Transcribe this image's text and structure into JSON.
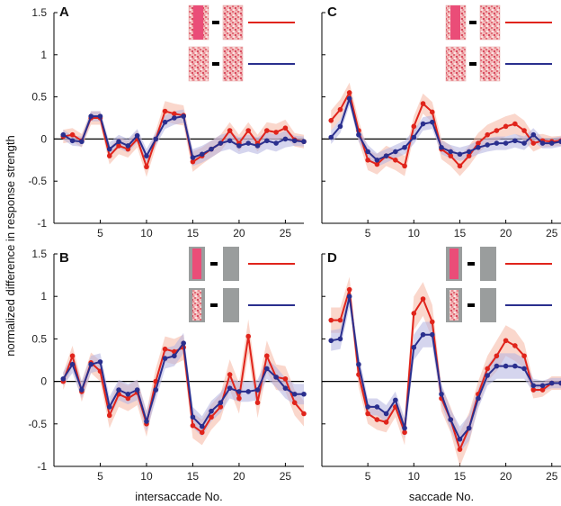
{
  "y_axis_label": "normalized difference in response strength",
  "colors": {
    "red": "#e0241b",
    "blue": "#2a2f8e",
    "red_band": "#f6b7a2",
    "blue_band": "#b3b3e0"
  },
  "chart_data": [
    {
      "panel": "A",
      "type": "line",
      "xlabel": "",
      "ylim": [
        -1,
        1.5
      ],
      "xlim": [
        0,
        27
      ],
      "xticks": [
        5,
        10,
        15,
        20,
        25
      ],
      "yticks": [
        -1,
        -0.5,
        0,
        0.5,
        1,
        1.5
      ],
      "ytick_labels": [
        "-1",
        "-0.5",
        "0",
        "0.5",
        "1",
        "1.5"
      ],
      "legend": [
        "pattern stimulus – red",
        "pattern stimulus – blue"
      ],
      "series": [
        {
          "name": "red",
          "x": [
            1,
            2,
            3,
            4,
            5,
            6,
            7,
            8,
            9,
            10,
            11,
            12,
            13,
            14,
            15,
            16,
            17,
            18,
            19,
            20,
            21,
            22,
            23,
            24,
            25,
            26,
            27
          ],
          "values": [
            0.03,
            0.05,
            -0.02,
            0.25,
            0.25,
            -0.2,
            -0.08,
            -0.12,
            0.0,
            -0.33,
            0.0,
            0.33,
            0.3,
            0.28,
            -0.27,
            -0.2,
            -0.12,
            -0.05,
            0.1,
            -0.05,
            0.1,
            -0.05,
            0.1,
            0.08,
            0.13,
            -0.01,
            -0.03
          ],
          "band": [
            0.08,
            0.08,
            0.08,
            0.08,
            0.08,
            0.1,
            0.1,
            0.1,
            0.1,
            0.12,
            0.1,
            0.12,
            0.12,
            0.12,
            0.12,
            0.1,
            0.1,
            0.1,
            0.1,
            0.1,
            0.1,
            0.1,
            0.1,
            0.1,
            0.1,
            0.08,
            0.08
          ]
        },
        {
          "name": "blue",
          "x": [
            1,
            2,
            3,
            4,
            5,
            6,
            7,
            8,
            9,
            10,
            11,
            12,
            13,
            14,
            15,
            16,
            17,
            18,
            19,
            20,
            21,
            22,
            23,
            24,
            25,
            26,
            27
          ],
          "values": [
            0.05,
            -0.02,
            -0.03,
            0.27,
            0.27,
            -0.12,
            -0.03,
            -0.08,
            0.04,
            -0.2,
            0.0,
            0.2,
            0.25,
            0.27,
            -0.22,
            -0.18,
            -0.12,
            -0.05,
            -0.02,
            -0.08,
            -0.05,
            -0.08,
            -0.02,
            -0.05,
            0.0,
            -0.02,
            -0.03
          ],
          "band": [
            0.06,
            0.06,
            0.06,
            0.06,
            0.06,
            0.08,
            0.08,
            0.08,
            0.08,
            0.08,
            0.08,
            0.08,
            0.08,
            0.08,
            0.1,
            0.1,
            0.1,
            0.1,
            0.1,
            0.1,
            0.1,
            0.1,
            0.1,
            0.1,
            0.1,
            0.06,
            0.06
          ]
        }
      ]
    },
    {
      "panel": "B",
      "type": "line",
      "xlabel": "intersaccade No.",
      "ylim": [
        -1,
        1.5
      ],
      "xlim": [
        0,
        27
      ],
      "xticks": [
        5,
        10,
        15,
        20,
        25
      ],
      "yticks": [
        -1,
        -0.5,
        0,
        0.5,
        1,
        1.5
      ],
      "ytick_labels": [
        "-1",
        "-0.5",
        "0",
        "0.5",
        "1",
        "1.5"
      ],
      "legend": [
        "uniform stimulus – red",
        "uniform stimulus – blue"
      ],
      "series": [
        {
          "name": "red",
          "x": [
            1,
            2,
            3,
            4,
            5,
            6,
            7,
            8,
            9,
            10,
            11,
            12,
            13,
            14,
            15,
            16,
            17,
            18,
            19,
            20,
            21,
            22,
            23,
            24,
            25,
            26,
            27
          ],
          "values": [
            0.0,
            0.3,
            -0.12,
            0.22,
            0.12,
            -0.4,
            -0.15,
            -0.2,
            -0.13,
            -0.5,
            0.0,
            0.38,
            0.35,
            0.4,
            -0.52,
            -0.6,
            -0.42,
            -0.3,
            0.08,
            -0.2,
            0.53,
            -0.25,
            0.3,
            0.05,
            0.03,
            -0.25,
            -0.38
          ],
          "band": [
            0.1,
            0.12,
            0.12,
            0.12,
            0.12,
            0.15,
            0.15,
            0.15,
            0.15,
            0.15,
            0.15,
            0.15,
            0.15,
            0.15,
            0.15,
            0.15,
            0.15,
            0.15,
            0.18,
            0.18,
            0.2,
            0.18,
            0.18,
            0.15,
            0.15,
            0.15,
            0.15
          ]
        },
        {
          "name": "blue",
          "x": [
            1,
            2,
            3,
            4,
            5,
            6,
            7,
            8,
            9,
            10,
            11,
            12,
            13,
            14,
            15,
            16,
            17,
            18,
            19,
            20,
            21,
            22,
            23,
            24,
            25,
            26,
            27
          ],
          "values": [
            0.03,
            0.2,
            -0.1,
            0.2,
            0.23,
            -0.3,
            -0.1,
            -0.15,
            -0.1,
            -0.47,
            -0.1,
            0.27,
            0.3,
            0.45,
            -0.42,
            -0.53,
            -0.35,
            -0.25,
            -0.08,
            -0.12,
            -0.12,
            -0.1,
            0.15,
            0.05,
            -0.08,
            -0.15,
            -0.15
          ],
          "band": [
            0.08,
            0.1,
            0.1,
            0.1,
            0.1,
            0.12,
            0.12,
            0.12,
            0.12,
            0.12,
            0.12,
            0.12,
            0.12,
            0.12,
            0.12,
            0.12,
            0.12,
            0.12,
            0.12,
            0.12,
            0.12,
            0.12,
            0.12,
            0.12,
            0.12,
            0.12,
            0.12
          ]
        }
      ]
    },
    {
      "panel": "C",
      "type": "line",
      "xlabel": "",
      "ylim": [
        -1,
        1.5
      ],
      "xlim": [
        0,
        26
      ],
      "xticks": [
        5,
        10,
        15,
        20,
        25
      ],
      "yticks": [
        -1,
        -0.5,
        0,
        0.5,
        1,
        1.5
      ],
      "ytick_labels": [
        "",
        "",
        "",
        "",
        "",
        ""
      ],
      "legend": [
        "pattern stimulus – red",
        "pattern stimulus – blue"
      ],
      "series": [
        {
          "name": "red",
          "x": [
            1,
            2,
            3,
            4,
            5,
            6,
            7,
            8,
            9,
            10,
            11,
            12,
            13,
            14,
            15,
            16,
            17,
            18,
            19,
            20,
            21,
            22,
            23,
            24,
            25,
            26
          ],
          "values": [
            0.22,
            0.35,
            0.55,
            0.1,
            -0.25,
            -0.3,
            -0.2,
            -0.25,
            -0.32,
            0.15,
            0.42,
            0.32,
            -0.12,
            -0.2,
            -0.32,
            -0.2,
            -0.05,
            0.05,
            0.1,
            0.15,
            0.18,
            0.1,
            -0.05,
            -0.02,
            -0.03,
            -0.02
          ],
          "band": [
            0.12,
            0.12,
            0.12,
            0.12,
            0.12,
            0.12,
            0.12,
            0.12,
            0.12,
            0.12,
            0.12,
            0.12,
            0.12,
            0.12,
            0.12,
            0.12,
            0.12,
            0.12,
            0.12,
            0.12,
            0.12,
            0.12,
            0.1,
            0.08,
            0.06,
            0.06
          ]
        },
        {
          "name": "blue",
          "x": [
            1,
            2,
            3,
            4,
            5,
            6,
            7,
            8,
            9,
            10,
            11,
            12,
            13,
            14,
            15,
            16,
            17,
            18,
            19,
            20,
            21,
            22,
            23,
            24,
            25,
            26
          ],
          "values": [
            0.02,
            0.15,
            0.48,
            0.05,
            -0.15,
            -0.25,
            -0.2,
            -0.15,
            -0.1,
            0.02,
            0.18,
            0.2,
            -0.1,
            -0.15,
            -0.18,
            -0.15,
            -0.1,
            -0.07,
            -0.05,
            -0.05,
            -0.02,
            -0.05,
            0.05,
            -0.05,
            -0.05,
            -0.03
          ],
          "band": [
            0.08,
            0.08,
            0.08,
            0.08,
            0.08,
            0.08,
            0.08,
            0.08,
            0.08,
            0.08,
            0.08,
            0.08,
            0.08,
            0.08,
            0.08,
            0.08,
            0.08,
            0.08,
            0.08,
            0.08,
            0.08,
            0.08,
            0.08,
            0.06,
            0.06,
            0.06
          ]
        }
      ]
    },
    {
      "panel": "D",
      "type": "line",
      "xlabel": "saccade No.",
      "ylim": [
        -1,
        1.5
      ],
      "xlim": [
        0,
        26
      ],
      "xticks": [
        5,
        10,
        15,
        20,
        25
      ],
      "yticks": [
        -1,
        -0.5,
        0,
        0.5,
        1,
        1.5
      ],
      "ytick_labels": [
        "",
        "",
        "",
        "",
        "",
        ""
      ],
      "legend": [
        "uniform stimulus – red",
        "uniform stimulus – blue"
      ],
      "series": [
        {
          "name": "red",
          "x": [
            1,
            2,
            3,
            4,
            5,
            6,
            7,
            8,
            9,
            10,
            11,
            12,
            13,
            14,
            15,
            16,
            17,
            18,
            19,
            20,
            21,
            22,
            23,
            24,
            25,
            26
          ],
          "values": [
            0.72,
            0.72,
            1.08,
            0.08,
            -0.38,
            -0.45,
            -0.48,
            -0.3,
            -0.6,
            0.8,
            0.97,
            0.7,
            -0.2,
            -0.45,
            -0.8,
            -0.55,
            -0.15,
            0.15,
            0.3,
            0.48,
            0.42,
            0.3,
            -0.1,
            -0.1,
            -0.02,
            -0.02
          ],
          "band": [
            0.15,
            0.15,
            0.15,
            0.15,
            0.12,
            0.12,
            0.12,
            0.12,
            0.15,
            0.2,
            0.2,
            0.2,
            0.15,
            0.15,
            0.2,
            0.18,
            0.15,
            0.15,
            0.18,
            0.18,
            0.18,
            0.15,
            0.1,
            0.08,
            0.08,
            0.08
          ]
        },
        {
          "name": "blue",
          "x": [
            1,
            2,
            3,
            4,
            5,
            6,
            7,
            8,
            9,
            10,
            11,
            12,
            13,
            14,
            15,
            16,
            17,
            18,
            19,
            20,
            21,
            22,
            23,
            24,
            25,
            26
          ],
          "values": [
            0.48,
            0.5,
            1.0,
            0.2,
            -0.3,
            -0.3,
            -0.38,
            -0.22,
            -0.55,
            0.4,
            0.55,
            0.55,
            -0.15,
            -0.45,
            -0.68,
            -0.55,
            -0.2,
            0.07,
            0.18,
            0.18,
            0.18,
            0.15,
            -0.05,
            -0.05,
            -0.02,
            -0.02
          ],
          "band": [
            0.12,
            0.12,
            0.12,
            0.12,
            0.1,
            0.1,
            0.1,
            0.1,
            0.12,
            0.15,
            0.15,
            0.15,
            0.12,
            0.12,
            0.15,
            0.15,
            0.12,
            0.12,
            0.15,
            0.15,
            0.15,
            0.12,
            0.08,
            0.06,
            0.06,
            0.06
          ]
        }
      ]
    }
  ]
}
